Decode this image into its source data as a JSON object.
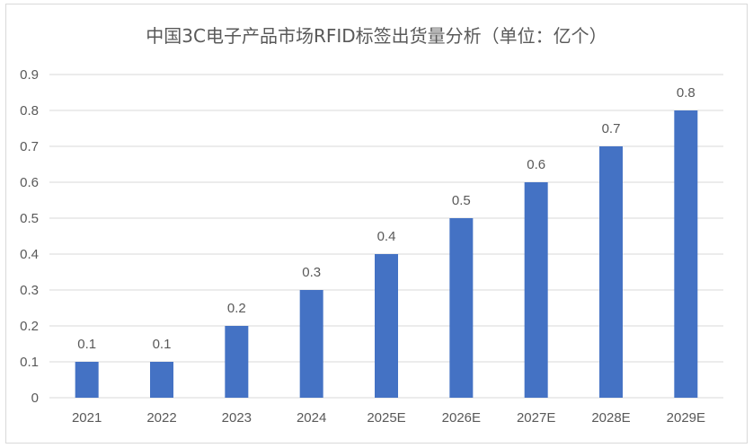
{
  "chart_data": {
    "type": "bar",
    "title": "中国3C电子产品市场RFID标签出货量分析（单位：亿个）",
    "categories": [
      "2021",
      "2022",
      "2023",
      "2024",
      "2025E",
      "2026E",
      "2027E",
      "2028E",
      "2029E"
    ],
    "values": [
      0.1,
      0.1,
      0.2,
      0.3,
      0.4,
      0.5,
      0.6,
      0.7,
      0.8
    ],
    "data_labels": [
      "0.1",
      "0.1",
      "0.2",
      "0.3",
      "0.4",
      "0.5",
      "0.6",
      "0.7",
      "0.8"
    ],
    "yticks": [
      "0",
      "0.1",
      "0.2",
      "0.3",
      "0.4",
      "0.5",
      "0.6",
      "0.7",
      "0.8",
      "0.9"
    ],
    "ylim": [
      0,
      0.9
    ],
    "xlabel": "",
    "ylabel": "",
    "grid": true,
    "legend": "none",
    "bar_color": "#4472c4"
  }
}
